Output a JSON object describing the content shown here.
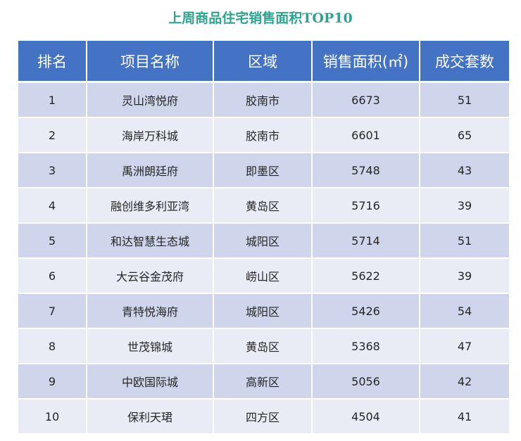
{
  "chart_data": {
    "type": "table",
    "title": "上周商品住宅销售面积TOP10",
    "columns": [
      "排名",
      "项目名称",
      "区域",
      "销售面积(㎡)",
      "成交套数"
    ],
    "rows": [
      [
        "1",
        "灵山湾悦府",
        "胶南市",
        "6673",
        "51"
      ],
      [
        "2",
        "海岸万科城",
        "胶南市",
        "6601",
        "65"
      ],
      [
        "3",
        "禹洲朗廷府",
        "即墨区",
        "5748",
        "43"
      ],
      [
        "4",
        "融创维多利亚湾",
        "黄岛区",
        "5716",
        "39"
      ],
      [
        "5",
        "和达智慧生态城",
        "城阳区",
        "5714",
        "51"
      ],
      [
        "6",
        "大云谷金茂府",
        "崂山区",
        "5622",
        "39"
      ],
      [
        "7",
        "青特悦海府",
        "城阳区",
        "5426",
        "54"
      ],
      [
        "8",
        "世茂锦城",
        "黄岛区",
        "5368",
        "47"
      ],
      [
        "9",
        "中欧国际城",
        "高新区",
        "5056",
        "42"
      ],
      [
        "10",
        "保利天珺",
        "四方区",
        "4504",
        "41"
      ]
    ]
  },
  "colors": {
    "title": "#2ca58f",
    "header_bg": "#4472c4",
    "header_text": "#ffffff",
    "row_odd_bg": "#cfd5ea",
    "row_even_bg": "#e9ebf5",
    "cell_text": "#262626"
  }
}
